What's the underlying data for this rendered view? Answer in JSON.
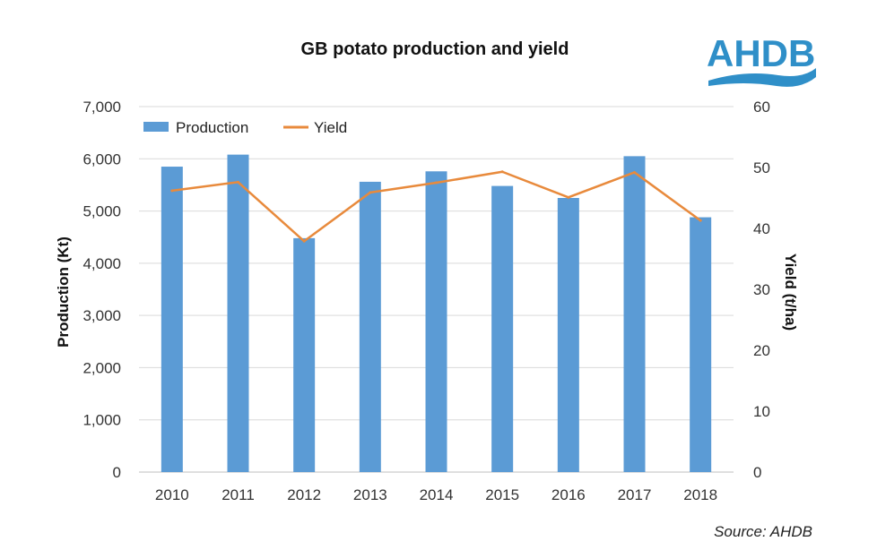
{
  "logo": {
    "text": "AHDB",
    "color": "#2f8fc8"
  },
  "footer": {
    "source": "Source: AHDB"
  },
  "colors": {
    "bar": "#5b9bd5",
    "line": "#e88a3c",
    "gridline": "#d9d9d9",
    "axis": "#bfbfbf"
  },
  "chart_data": {
    "type": "bar",
    "title": "GB potato production and yield",
    "xlabel": "",
    "ylabel": "Production (Kt)",
    "y2label": "Yield (t/ha)",
    "categories": [
      "2010",
      "2011",
      "2012",
      "2013",
      "2014",
      "2015",
      "2016",
      "2017",
      "2018"
    ],
    "ylim": [
      0,
      7000
    ],
    "y2lim": [
      0,
      60
    ],
    "yticks": [
      "0",
      "1,000",
      "2,000",
      "3,000",
      "4,000",
      "5,000",
      "6,000",
      "7,000"
    ],
    "y2ticks": [
      "0",
      "10",
      "20",
      "30",
      "40",
      "50",
      "60"
    ],
    "grid": true,
    "legend_position": "top-left",
    "series": [
      {
        "name": "Production",
        "type": "bar",
        "axis": "left",
        "values": [
          5850,
          6080,
          4480,
          5560,
          5760,
          5480,
          5250,
          6050,
          4880
        ]
      },
      {
        "name": "Yield",
        "type": "line",
        "axis": "right",
        "values": [
          46.2,
          47.6,
          37.9,
          45.9,
          47.5,
          49.3,
          45.1,
          49.2,
          41.3
        ]
      }
    ]
  }
}
